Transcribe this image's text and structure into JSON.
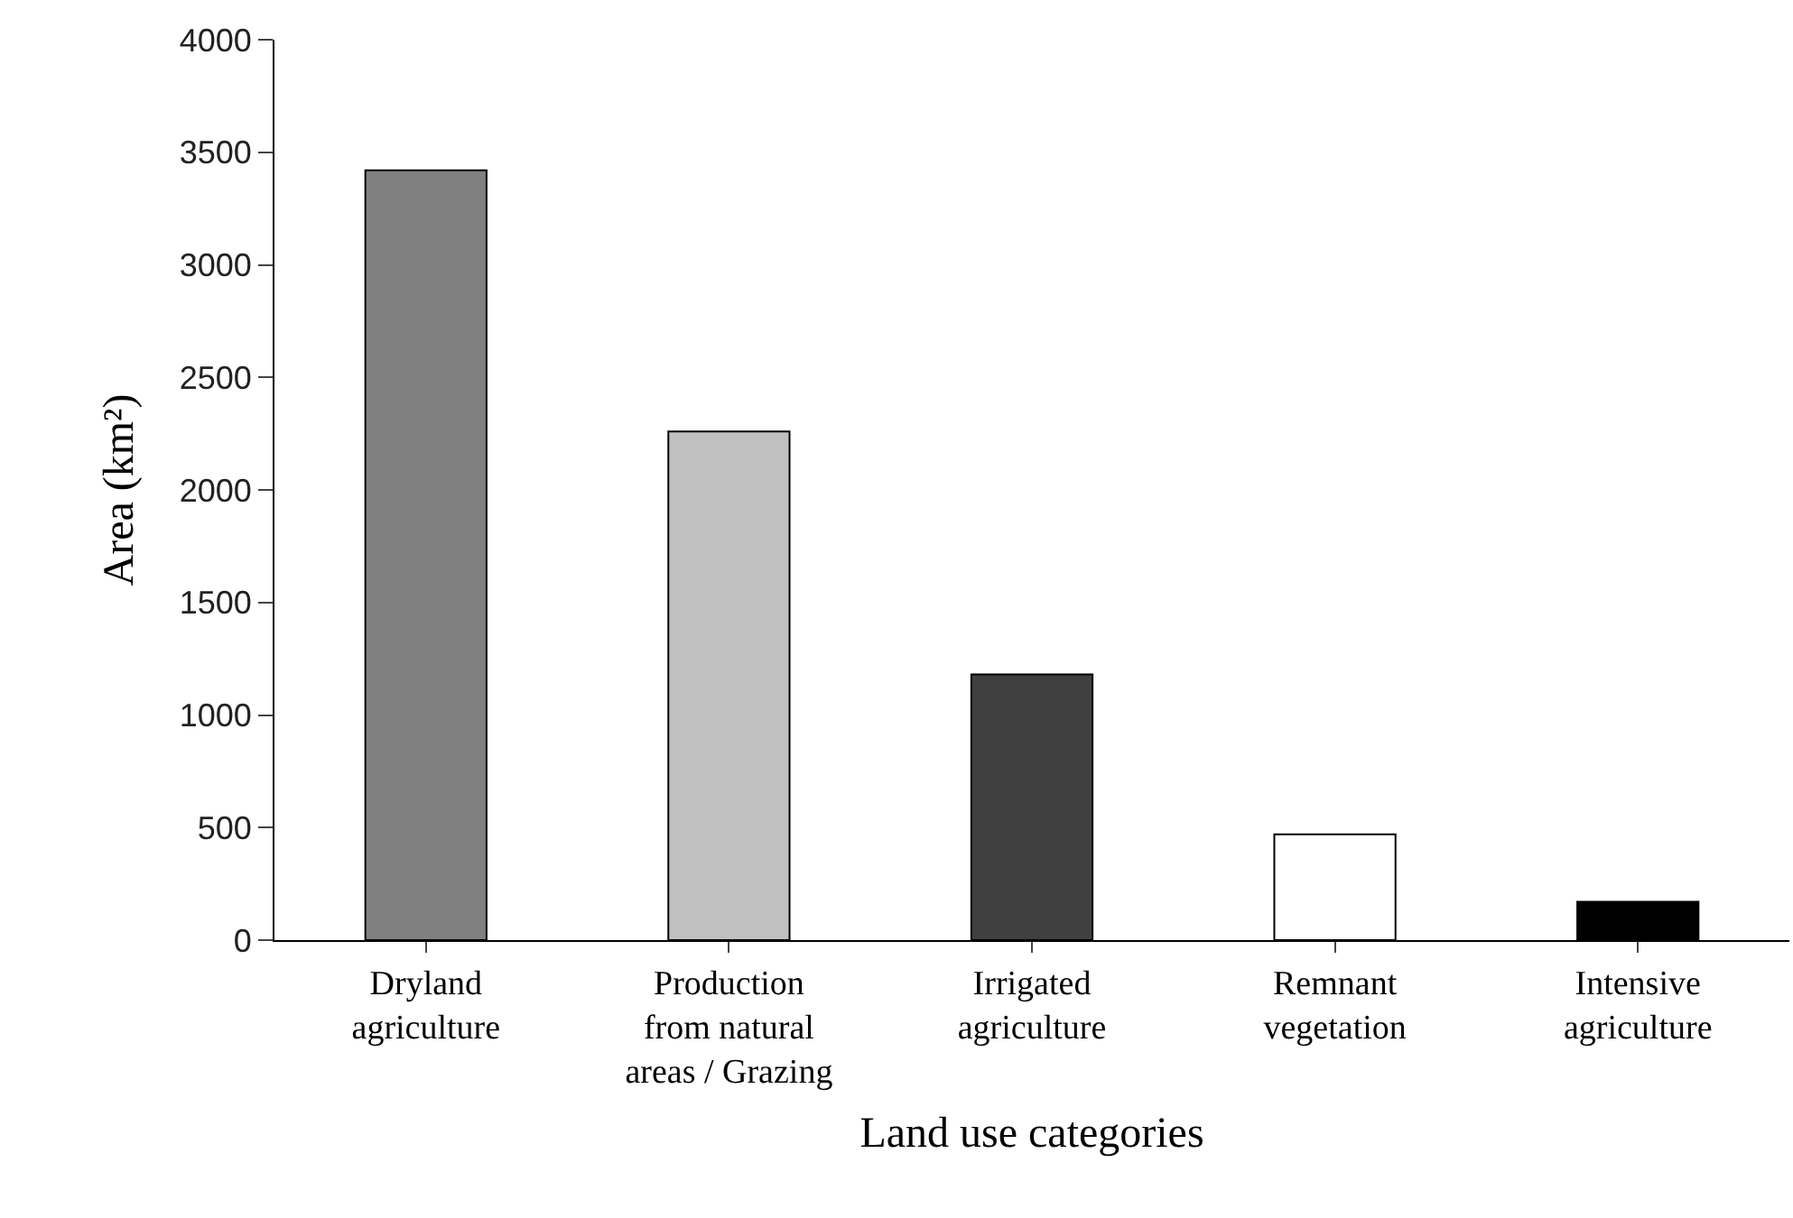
{
  "chart_data": {
    "type": "bar",
    "xlabel": "Land use categories",
    "ylabel": "Area (km²)",
    "categories": [
      "Dryland\nagriculture",
      "Production\nfrom natural\nareas / Grazing",
      "Irrigated\nagriculture",
      "Remnant\nvegetation",
      "Intensive\nagriculture"
    ],
    "values": [
      3420,
      2260,
      1180,
      470,
      170
    ],
    "colors": [
      "#808080",
      "#c0c0c0",
      "#404040",
      "#ffffff",
      "#000000"
    ],
    "ylim": [
      0,
      4000
    ],
    "yticks": [
      0,
      500,
      1000,
      1500,
      2000,
      2500,
      3000,
      3500,
      4000
    ]
  }
}
